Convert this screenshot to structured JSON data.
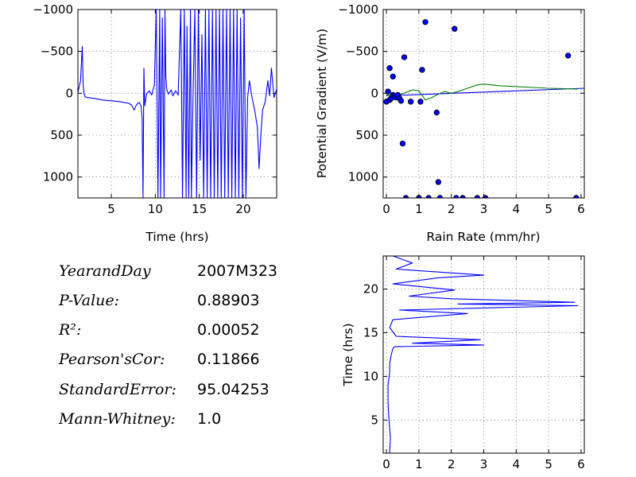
{
  "colors": {
    "blue": "#0000ff",
    "green": "#008000",
    "point_fill": "#0000ff",
    "point_edge": "#000000"
  },
  "stats": [
    {
      "label": "YearandDay",
      "suffix": "",
      "value": "2007M323"
    },
    {
      "label": "P-Value",
      "suffix": ":",
      "value": "0.88903"
    },
    {
      "label": "R²",
      "suffix": ":",
      "value": "0.00052"
    },
    {
      "label": "Pearson'sCor",
      "suffix": ":",
      "value": "0.11866"
    },
    {
      "label": "StandardError",
      "suffix": ":",
      "value": "95.04253"
    },
    {
      "label": "Mann-Whitney",
      "suffix": ":",
      "value": "1.0"
    }
  ],
  "chart_data": [
    {
      "id": "pg_time",
      "type": "line",
      "title": "",
      "xlabel": "Time (hrs)",
      "ylabel": "",
      "xlim": [
        1.2,
        23.8
      ],
      "ylim": [
        1250,
        -1000
      ],
      "y_inverted": true,
      "grid": true,
      "xticks": [
        5,
        10,
        15,
        20
      ],
      "yticks": [
        -1000,
        -500,
        0,
        500,
        1000
      ],
      "ytick_labels": [
        "−1000",
        "−500",
        "0",
        "500",
        "1000"
      ],
      "series": [
        {
          "color": "blue",
          "x": [
            1.2,
            1.5,
            1.7,
            1.8,
            1.9,
            2.0,
            2.2,
            2.5,
            3.0,
            3.5,
            4.0,
            4.5,
            5.0,
            5.5,
            6.0,
            6.5,
            7.0,
            7.3,
            7.6,
            7.8,
            8.0,
            8.2,
            8.4,
            8.5,
            8.6,
            8.7,
            8.8,
            9.0,
            9.3,
            9.6,
            9.9,
            10.1,
            10.3,
            10.5,
            10.6,
            10.8,
            11.0,
            11.1,
            11.2,
            11.3,
            11.5,
            11.8,
            12.0,
            12.3,
            12.6,
            12.9,
            13.1,
            13.3,
            13.5,
            13.6,
            13.8,
            14.0,
            14.1,
            14.3,
            14.5,
            14.7,
            14.9,
            15.1,
            15.3,
            15.5,
            15.7,
            15.9,
            16.1,
            16.3,
            16.5,
            16.7,
            16.9,
            17.1,
            17.3,
            17.5,
            17.7,
            17.9,
            18.1,
            18.3,
            18.5,
            18.7,
            18.9,
            19.1,
            19.3,
            19.5,
            19.7,
            19.9,
            20.1,
            20.3,
            20.5,
            20.7,
            21.0,
            21.3,
            21.6,
            21.8,
            22.0,
            22.2,
            22.5,
            22.8,
            23.0,
            23.2,
            23.5,
            23.8
          ],
          "y": [
            -10,
            -150,
            -560,
            -100,
            0,
            40,
            50,
            55,
            60,
            70,
            80,
            85,
            90,
            95,
            100,
            110,
            120,
            140,
            200,
            150,
            120,
            110,
            160,
            300,
            1250,
            -300,
            150,
            10,
            -30,
            20,
            -100,
            -1000,
            1250,
            -1000,
            1250,
            -900,
            1250,
            -1000,
            -200,
            -50,
            10,
            -40,
            30,
            -30,
            20,
            -1000,
            1250,
            -1000,
            1250,
            -800,
            1250,
            -1000,
            1250,
            0,
            -1000,
            1250,
            -1000,
            800,
            -700,
            1250,
            -1000,
            1250,
            -1000,
            1250,
            -1000,
            1250,
            -1000,
            1250,
            -1000,
            1250,
            -1000,
            1250,
            -1000,
            1250,
            -1000,
            1250,
            -1000,
            1250,
            -1000,
            1250,
            -900,
            1250,
            -1000,
            1250,
            50,
            -150,
            50,
            200,
            400,
            900,
            500,
            200,
            100,
            -150,
            30,
            -300,
            50,
            -50
          ]
        }
      ]
    },
    {
      "id": "pg_rain",
      "type": "scatter",
      "title": "",
      "xlabel": "Rain Rate (mm/hr)",
      "ylabel": "Potential Gradient (V/m)",
      "xlim": [
        -0.1,
        6.1
      ],
      "ylim": [
        1250,
        -1000
      ],
      "y_inverted": true,
      "grid": true,
      "xticks": [
        0,
        1,
        2,
        3,
        4,
        5,
        6
      ],
      "yticks": [
        -1000,
        -500,
        0,
        500,
        1000
      ],
      "ytick_labels": [
        "−1000",
        "−500",
        "0",
        "500",
        "1000"
      ],
      "points": {
        "x": [
          0.0,
          0.05,
          0.1,
          0.1,
          0.15,
          0.2,
          0.2,
          0.25,
          0.3,
          0.35,
          0.4,
          0.45,
          0.5,
          0.55,
          0.6,
          0.75,
          1.0,
          1.05,
          1.1,
          1.2,
          1.3,
          1.55,
          1.6,
          1.65,
          2.1,
          2.15,
          2.35,
          2.8,
          3.05,
          5.6,
          5.85
        ],
        "y": [
          100,
          -20,
          80,
          -300,
          60,
          20,
          -200,
          30,
          50,
          20,
          60,
          90,
          600,
          -430,
          1250,
          100,
          1250,
          100,
          -280,
          -850,
          1250,
          230,
          1060,
          1250,
          -770,
          1250,
          1250,
          1250,
          1250,
          -450,
          1250
        ]
      },
      "lines": [
        {
          "color": "blue",
          "x": [
            0.0,
            6.1
          ],
          "y": [
            30,
            -60
          ]
        },
        {
          "color": "green",
          "x": [
            0.0,
            0.2,
            0.4,
            0.6,
            0.8,
            1.0,
            1.2,
            1.4,
            1.6,
            1.8,
            2.0,
            2.2,
            2.5,
            2.8,
            3.0,
            3.5,
            4.0,
            4.5,
            5.0,
            5.5,
            5.9
          ],
          "y": [
            20,
            40,
            20,
            -10,
            -40,
            -30,
            80,
            50,
            10,
            -20,
            0,
            -20,
            -60,
            -100,
            -110,
            -90,
            -80,
            -70,
            -60,
            -55,
            -50
          ]
        }
      ]
    },
    {
      "id": "time_rain",
      "type": "line",
      "title": "",
      "xlabel": "",
      "ylabel": "Time (hrs)",
      "xlim": [
        -0.1,
        6.1
      ],
      "ylim": [
        1.2,
        23.8
      ],
      "grid": true,
      "xticks": [
        0,
        1,
        2,
        3,
        4,
        5,
        6
      ],
      "yticks": [
        5,
        10,
        15,
        20
      ],
      "series": [
        {
          "color": "blue",
          "x": [
            0.1,
            0.12,
            0.08,
            0.05,
            0.05,
            0.1,
            0.1,
            0.15,
            0.2,
            0.25,
            3.0,
            0.8,
            2.9,
            0.3,
            0.1,
            0.2,
            2.5,
            0.4,
            5.9,
            2.2,
            5.8,
            2.0,
            0.7,
            2.1,
            0.2,
            1.6,
            3.0,
            0.3,
            0.8,
            0.2
          ],
          "y": [
            1.2,
            3.0,
            5.0,
            7.0,
            9.0,
            10.5,
            11.5,
            12.5,
            13.2,
            13.4,
            13.6,
            13.8,
            14.2,
            14.6,
            15.6,
            16.5,
            17.2,
            17.6,
            18.1,
            18.3,
            18.5,
            18.9,
            19.2,
            19.9,
            20.6,
            21.3,
            21.6,
            22.3,
            23.0,
            23.8
          ]
        }
      ]
    }
  ]
}
